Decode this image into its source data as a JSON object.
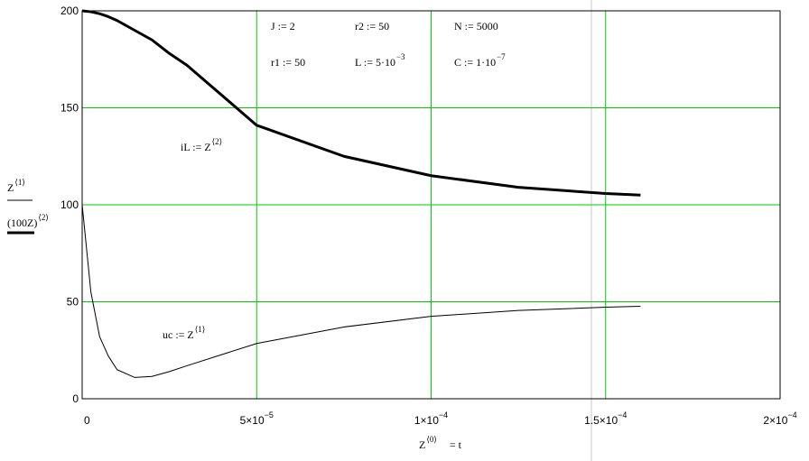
{
  "chart_data": {
    "type": "line",
    "x": [
      0,
      2.5e-06,
      5e-06,
      7.5e-06,
      1e-05,
      1.5e-05,
      2e-05,
      2.5e-05,
      3e-05,
      5e-05,
      7.5e-05,
      0.0001,
      0.000125,
      0.00015,
      0.00016
    ],
    "series": [
      {
        "color": "#000000",
        "width": 1,
        "values": [
          100,
          55,
          32,
          22,
          15,
          11,
          11.5,
          14,
          17,
          28.5,
          37,
          42.5,
          45.5,
          47.2,
          47.7
        ]
      },
      {
        "color": "#000000",
        "width": 3,
        "values": [
          200,
          199.5,
          198.5,
          197,
          195,
          190,
          185,
          178,
          172,
          141,
          125,
          115,
          109,
          105.8,
          105
        ]
      }
    ],
    "xlim": [
      0,
      0.0002
    ],
    "ylim": [
      0,
      200
    ],
    "xticks": [
      0,
      {
        "value": 5e-05,
        "label": "5×10",
        "exponent": "−5"
      },
      {
        "value": 0.0001,
        "label": "1×10",
        "exponent": "−4"
      },
      {
        "value": 0.00015,
        "label": "1.5×10",
        "exponent": "−4"
      },
      {
        "value": 0.0002,
        "label": "2×10",
        "exponent": "−4"
      }
    ],
    "yticks": [
      0,
      50,
      100,
      150,
      200
    ],
    "grid": true,
    "grid_color": "#00cc00",
    "xlabel": {
      "text": "Z",
      "sup": "⟨0⟩",
      "after": "=  t"
    },
    "ylabel": [
      {
        "text": "Z",
        "sup": "⟨1⟩"
      },
      {
        "text": "(100Z)",
        "sup": "⟨2⟩"
      }
    ],
    "annotations": [
      {
        "text": "J := 2"
      },
      {
        "text": "r2 := 50"
      },
      {
        "text": "N := 5000"
      },
      {
        "text": "r1 := 50"
      },
      {
        "text": "L := 5·10",
        "sup": "−3"
      },
      {
        "text": "C := 1·10",
        "sup": "−7"
      },
      {
        "text": "iL := Z",
        "sup": "⟨2⟩"
      },
      {
        "text": "uc := Z",
        "sup": "⟨1⟩"
      }
    ]
  }
}
